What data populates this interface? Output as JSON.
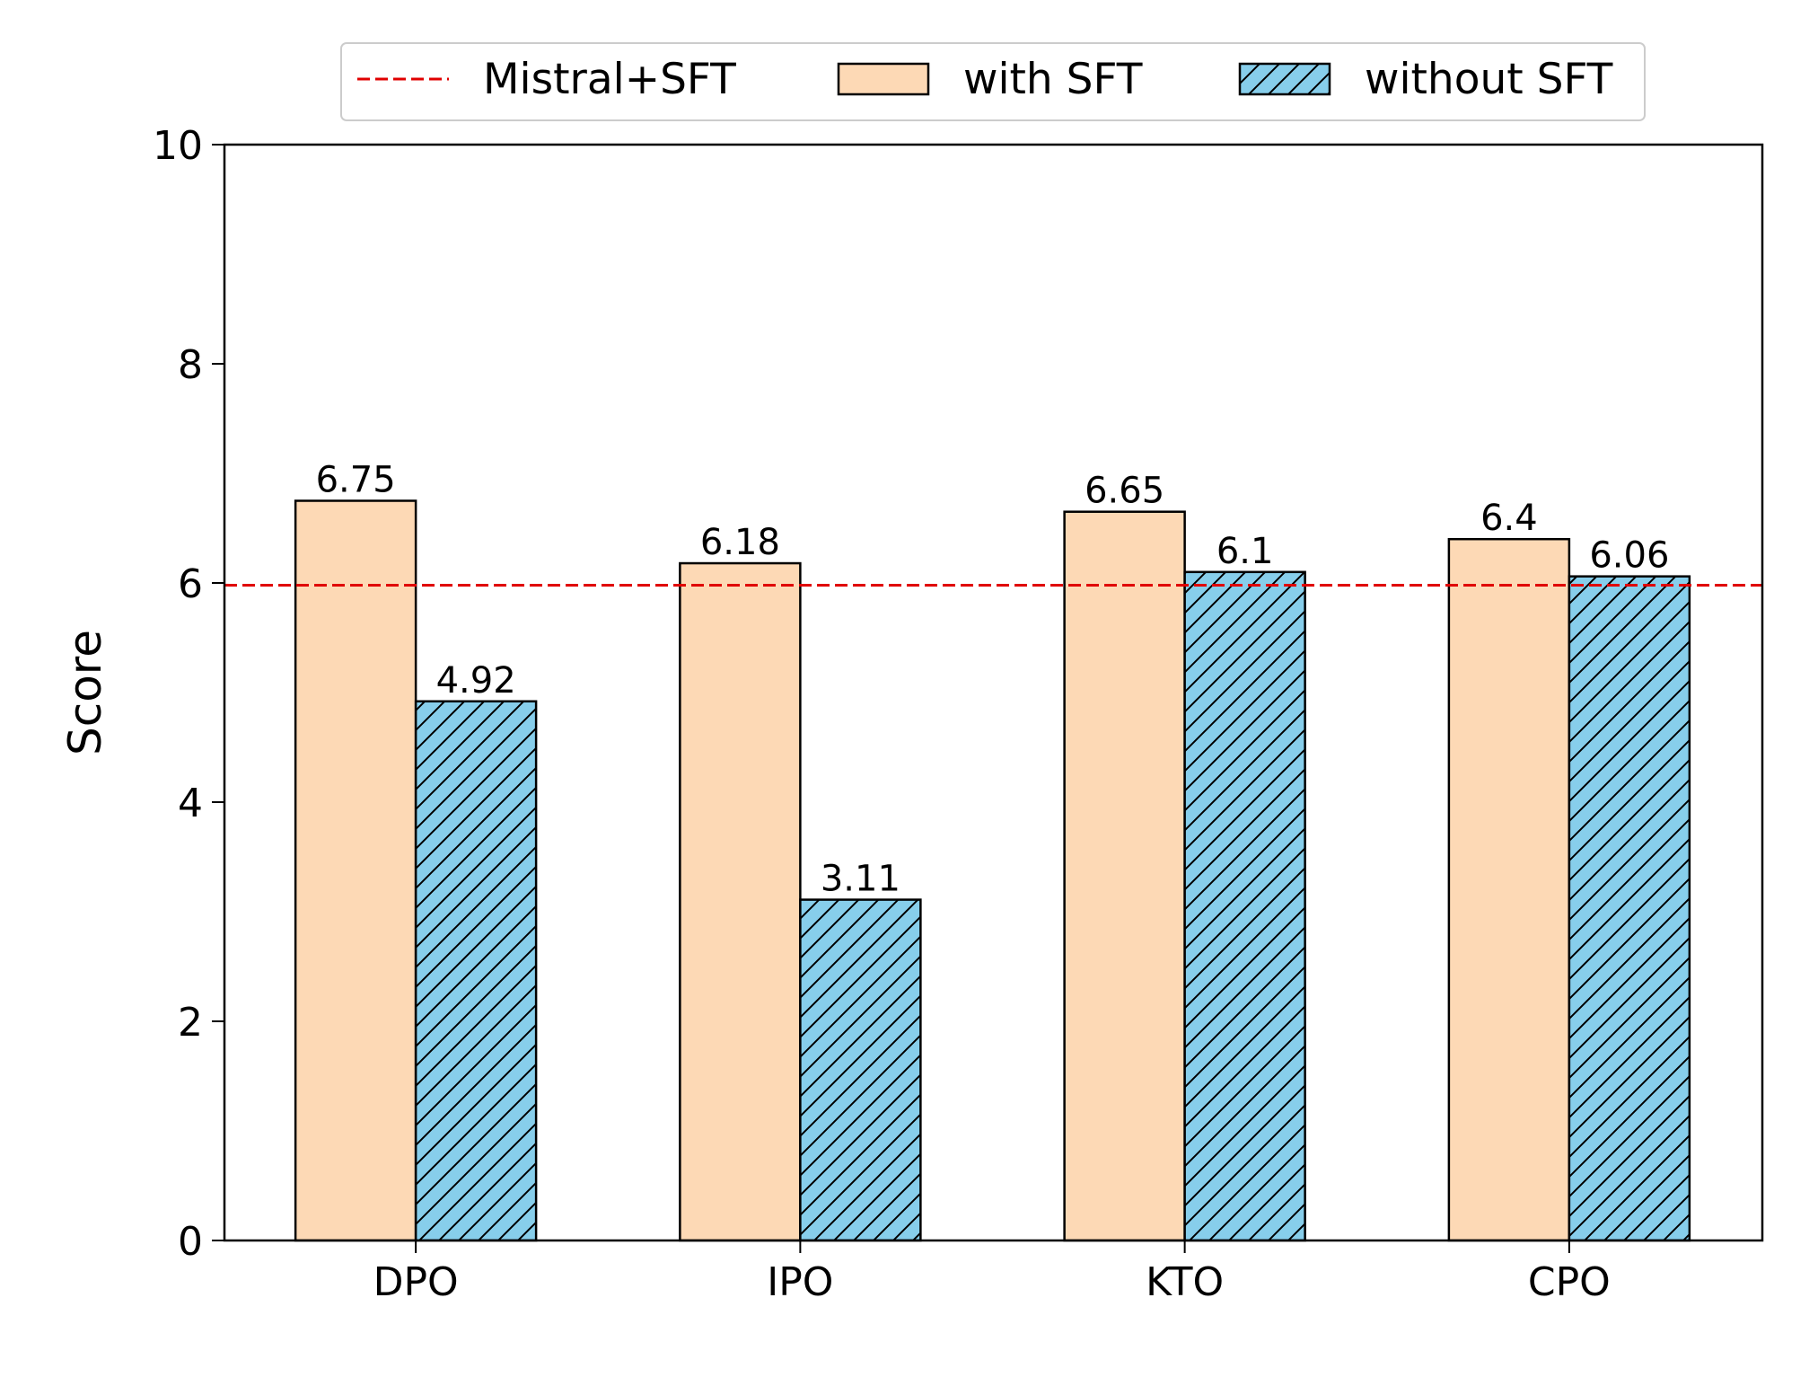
{
  "chart_data": {
    "type": "bar",
    "title": "",
    "xlabel": "",
    "ylabel": "Score",
    "ylim": [
      0,
      10
    ],
    "yticks": [
      0,
      2,
      4,
      6,
      8,
      10
    ],
    "categories": [
      "DPO",
      "IPO",
      "KTO",
      "CPO"
    ],
    "series": [
      {
        "name": "with SFT",
        "values": [
          6.75,
          6.18,
          6.65,
          6.4
        ],
        "labels": [
          "6.75",
          "6.18",
          "6.65",
          "6.4"
        ],
        "color": "#fdd9b5",
        "hatch": false
      },
      {
        "name": "without SFT",
        "values": [
          4.92,
          3.11,
          6.1,
          6.06
        ],
        "labels": [
          "4.92",
          "3.11",
          "6.1",
          "6.06"
        ],
        "color": "#87ceeb",
        "hatch": true
      }
    ],
    "reference_line": {
      "name": "Mistral+SFT",
      "value": 5.98,
      "color": "#e00000",
      "style": "dashed"
    },
    "legend": {
      "position": "top-center",
      "entries": [
        "Mistral+SFT",
        "with SFT",
        "without SFT"
      ]
    },
    "grid": false
  }
}
